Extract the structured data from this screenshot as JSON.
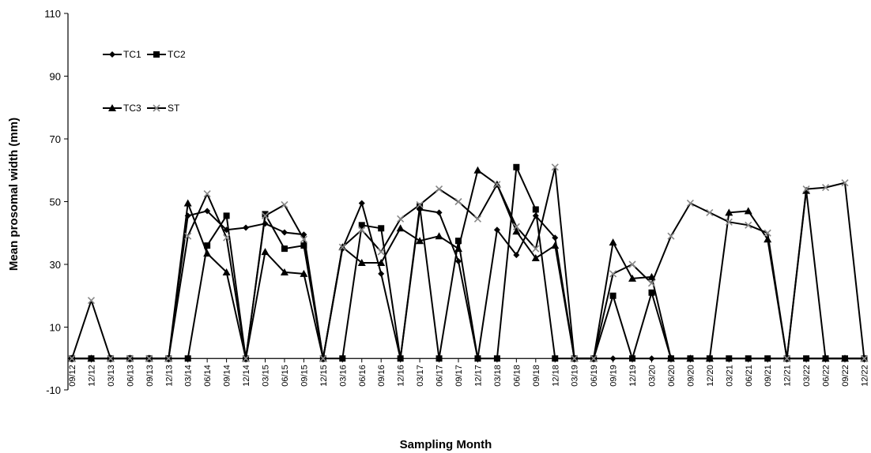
{
  "chart_data": {
    "type": "line",
    "title": "",
    "xlabel": "Sampling Month",
    "ylabel": "Mean prosomal width (mm)",
    "ylim": [
      -10,
      110
    ],
    "yticks": [
      -10,
      10,
      30,
      50,
      70,
      90,
      110
    ],
    "grid": false,
    "legend": "top-left",
    "categories": [
      "09/12",
      "12/12",
      "03/13",
      "06/13",
      "09/13",
      "12/13",
      "03/14",
      "06/14",
      "09/14",
      "12/14",
      "03/15",
      "06/15",
      "09/15",
      "12/15",
      "03/16",
      "06/16",
      "09/16",
      "12/16",
      "03/17",
      "06/17",
      "09/17",
      "12/17",
      "03/18",
      "06/18",
      "09/18",
      "12/18",
      "03/19",
      "06/19",
      "09/19",
      "12/19",
      "03/20",
      "06/20",
      "09/20",
      "12/20",
      "03/21",
      "06/21",
      "09/21",
      "12/21",
      "03/22",
      "06/22",
      "09/22",
      "12/22"
    ],
    "series": [
      {
        "name": "TC1",
        "marker": "diamond",
        "values": [
          0,
          0,
          0,
          0,
          0,
          0,
          45.5,
          47,
          41,
          41.7,
          43,
          40.2,
          39.5,
          0,
          35,
          49.5,
          27,
          0,
          47.5,
          46.5,
          31,
          0,
          41,
          33,
          45.5,
          38.5,
          0,
          0,
          0,
          0,
          0,
          0,
          0,
          0,
          0,
          0,
          0,
          0,
          0,
          0,
          0,
          0
        ]
      },
      {
        "name": "TC2",
        "marker": "square",
        "values": [
          0,
          0,
          0,
          0,
          0,
          0,
          0,
          36,
          45.5,
          0,
          46,
          35,
          36,
          0,
          0,
          42.5,
          41.5,
          0,
          48.5,
          0,
          37.5,
          0,
          0,
          61,
          47.5,
          0,
          0,
          0,
          20,
          0,
          21,
          0,
          0,
          0,
          0,
          0,
          0,
          0,
          0,
          0,
          0,
          0
        ]
      },
      {
        "name": "TC3",
        "marker": "triangle",
        "values": [
          0,
          0,
          0,
          0,
          0,
          0,
          49.5,
          33.5,
          27.5,
          0,
          34,
          27.5,
          27,
          0,
          35.5,
          30.5,
          30.5,
          41.5,
          37.5,
          39,
          35,
          60,
          55.5,
          40.5,
          32,
          36,
          0,
          0,
          37,
          25.5,
          26,
          0,
          0,
          0,
          46.5,
          47,
          38,
          0,
          53.5,
          0,
          0,
          0
        ]
      },
      {
        "name": "ST",
        "marker": "x",
        "values": [
          0,
          18.5,
          0,
          0,
          0,
          0,
          39,
          52.5,
          38.5,
          0,
          45.5,
          49,
          38,
          0,
          35.5,
          41,
          34,
          44.5,
          49,
          54,
          50,
          44.5,
          55.5,
          42,
          35,
          61,
          0,
          0,
          27,
          30,
          24,
          39,
          49.5,
          46.5,
          43.5,
          42.5,
          40,
          0,
          54,
          54.5,
          56,
          0
        ]
      }
    ]
  }
}
